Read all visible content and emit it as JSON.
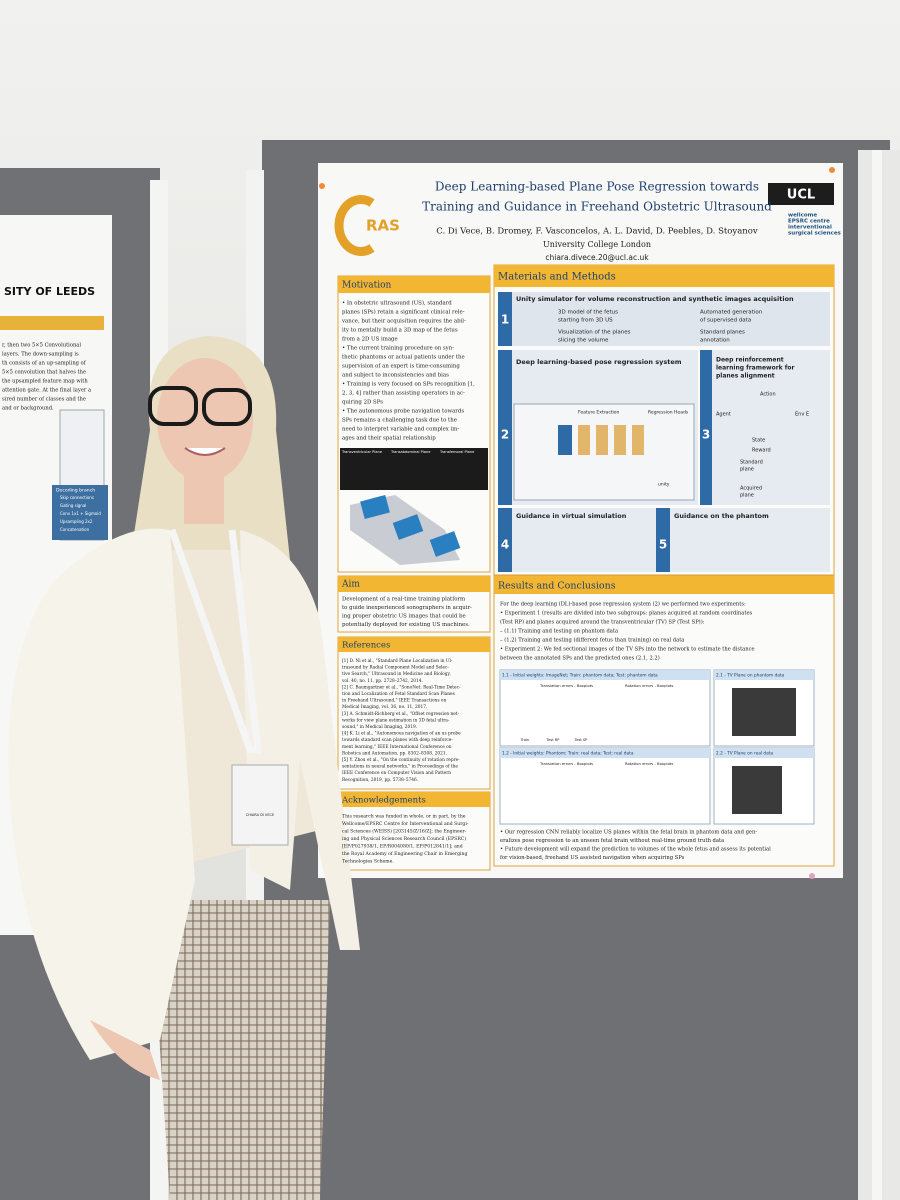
{
  "left_poster": {
    "header": "SITY OF LEEDS",
    "lines": [
      "r, then two 5×5 Convolutional",
      "layers. The down-sampling is",
      "th consists of an up-sampling of",
      "5×5 convolution that halves the",
      "the upsampled feature map with",
      "attention gate. At the final layer a",
      "sired number of classes and the",
      "and or background."
    ],
    "legend_title": "Decoding branch",
    "legend": [
      "Skip connections",
      "Gating signal",
      "Conv 1x1 + Sigmoid",
      "Upsampling 2x2",
      "Concatenation"
    ]
  },
  "poster": {
    "logo_letter": "C",
    "logo_text": "RAS",
    "title": [
      "Deep Learning-based Plane Pose Regression towards",
      "Training and Guidance in Freehand Obstetric Ultrasound"
    ],
    "authors": "C. Di Vece, B. Dromey, F. Vasconcelos, A. L. David, D. Peebles, D. Stoyanov",
    "affiliation": "University College London",
    "email": "chiara.divece.20@ucl.ac.uk",
    "ucl": "UCL",
    "wellcome": [
      "wellcome",
      "EPSRC centre",
      "interventional",
      "surgical sciences"
    ],
    "motivation": {
      "heading": "Motivation",
      "lines": [
        "• In obstetric ultrasound (US), standard",
        "planes (SPs) retain a significant clinical rele-",
        "vance, but their acquisition requires the abil-",
        "ity to mentally build a 3D map of the fetus",
        "from a 2D US image",
        "• The current training procedure on syn-",
        "thetic phantoms or actual patients under the",
        "supervision of an expert is time-consuming",
        "and subject to inconsistencies and bias",
        "• Training is very focused on SPs recognition [1,",
        "2, 3, 4] rather than assisting operators in ac-",
        "quiring 2D SPs",
        "• The autonomous probe navigation towards",
        "SPs remains a challenging task due to the",
        "need to interpret variable and complex im-",
        "ages and their spatial relationship"
      ],
      "image_labels": [
        "Transventricular Plane",
        "Transabdominal Plane",
        "Transfemoral Plane"
      ]
    },
    "aim": {
      "heading": "Aim",
      "lines": [
        "Development of a real-time training platform",
        "to guide inexperienced sonographers in acquir-",
        "ing proper obstetric US images that could be",
        "potentially deployed for existing US machines."
      ]
    },
    "references": {
      "heading": "References",
      "lines": [
        "[1] D. Ni et al., \"Standard Plane Localization in Ul-",
        "trasound by Radial Component Model and Selec-",
        "tive Search,\" Ultrasound in Medicine and Biology,",
        "vol. 40, no. 11, pp. 2728–2742, 2014.",
        "[2] C. Baumgartner et al., \"SonoNet: Real-Time Detec-",
        "tion and Localization of Fetal Standard Scan Planes",
        "in Freehand Ultrasound,\" IEEE Transactions on",
        "Medical Imaging, vol. 36, no. 11, 2017.",
        "[3] A. Schmidt-Richberg et al., \"Offset regression net-",
        "works for view plane estimation in 3D fetal ultra-",
        "sound,\" in Medical Imaging, 2019.",
        "[4] K. Li et al., \"Autonomous navigation of an us probe",
        "towards standard scan planes with deep reinforce-",
        "ment learning,\" IEEE International Conference on",
        "Robotics and Automation, pp. 8302–8308, 2021.",
        "[5] Y. Zhou et al., \"On the continuity of rotation repre-",
        "sentations in neural networks,\" in Proceedings of the",
        "IEEE Conference on Computer Vision and Pattern",
        "Recognition, 2019, pp. 5738–5746."
      ]
    },
    "acknowledgements": {
      "heading": "Acknowledgements",
      "lines": [
        "This research was funded in whole, or in part, by the",
        "Wellcome/EPSRC Centre for Interventional and Surgi-",
        "cal Sciences (WEISS) [203145/Z/16/Z]; the Engineer-",
        "ing and Physical Sciences Research Council (EPSRC)",
        "[EP/P027938/1, EP/R004080/1, EP/P012841/1]; and",
        "the Royal Academy of Engineering Chair in Emerging",
        "Technologies Scheme."
      ]
    },
    "methods": {
      "heading": "Materials and Methods",
      "numbers": [
        "1",
        "2",
        "3",
        "4",
        "5"
      ],
      "panel1_title": "Unity simulator for volume reconstruction and synthetic images acquisition",
      "panel1_items": [
        "3D model of the fetus",
        "starting from 3D US",
        "Visualization of the planes",
        "slicing the volume",
        "Automated generation",
        "of supervised data",
        "Standard planes",
        "annotation"
      ],
      "panel2_title": "Deep learning-based pose regression system",
      "panel2_labels": [
        "Feature Extraction",
        "Regression Heads",
        "unity"
      ],
      "panel3_title": [
        "Deep reinforcement",
        "learning framework for",
        "planes alignment"
      ],
      "panel3_labels": [
        "Action",
        "Agent",
        "Env E",
        "State",
        "Reward",
        "Standard",
        "plane",
        "Acquired",
        "plane"
      ],
      "panel4_title": "Guidance in virtual simulation",
      "panel5_title": "Guidance on the phantom"
    },
    "results": {
      "heading": "Results and Conclusions",
      "lines": [
        "For the deep learning (DL)-based pose regression system (2) we performed two experiments:",
        "• Experiment 1 (results are divided into two subgroups: planes acquired at random coordinates",
        "  (Test RP) and planes acquired around the transventricular (TV) SP (Test SP)):",
        "   – (1.1) Training and testing on phantom data",
        "   – (1.2) Training and testing (different fetus than training) on real data",
        "• Experiment 2: We fed sectional images of the TV SPs into the network to estimate the distance",
        "  between the annotated SPs and the predicted ones (2.1, 2.2)"
      ],
      "panels": [
        "1.1 - Initial weights: ImageNet; Train: phantom data; Test: phantom data",
        "2.1 - TV Plane on phantom data",
        "1.2 - Initial weights: Phantom; Train: real data; Test: real data",
        "2.2 - TV Plane on real data"
      ],
      "plot_titles": [
        "Translation errors - Boxplots",
        "Rotation errors - Boxplots",
        "Translation errors - Boxplots",
        "Rotation errors - Boxplots"
      ],
      "plot_axis": [
        "Train",
        "Test RP",
        "Test SP"
      ],
      "conclusions": [
        "• Our regression CNN reliably localize US planes within the fetal brain in phantom data and gen-",
        "  eralizes pose regression to an unseen fetal brain without real-time ground truth data",
        "• Future development will expand the prediction to volumes of the whole fetus and assess its potential",
        "  for vision-based, freehand US assisted navigation when acquiring SPs"
      ]
    }
  },
  "badge": {
    "name": "CHIARA DI VECE"
  }
}
